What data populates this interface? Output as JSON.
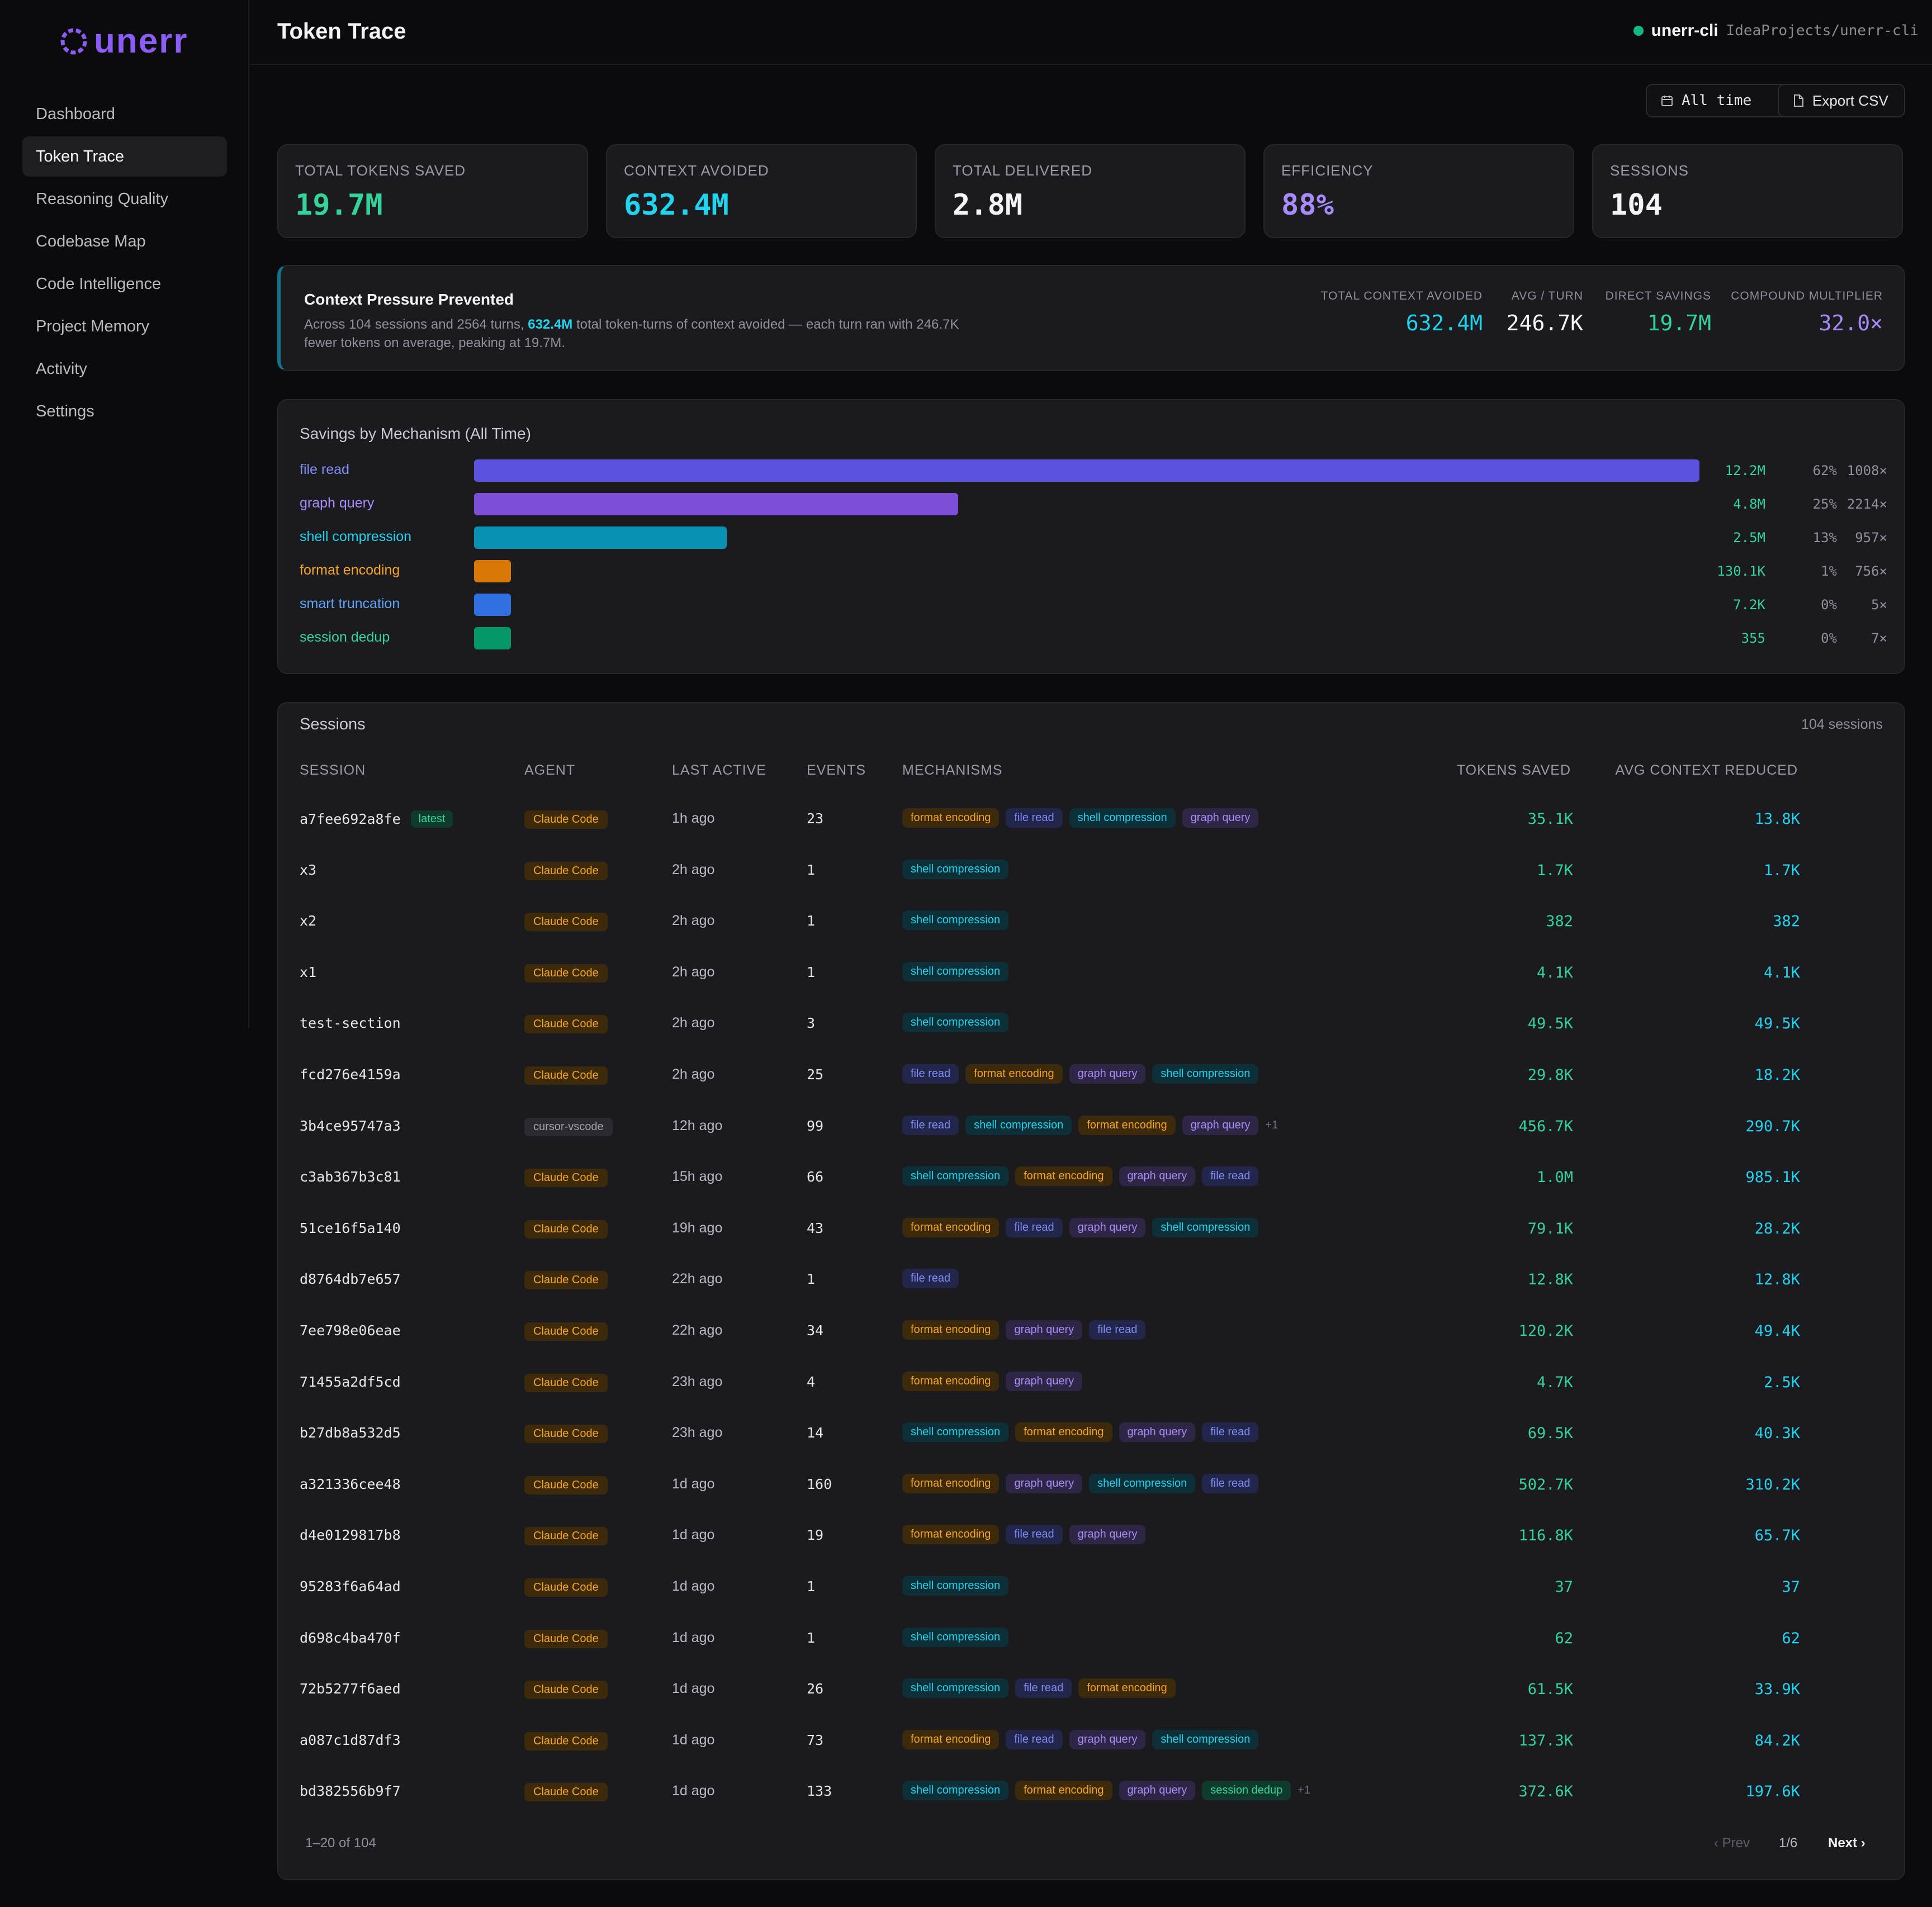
{
  "brand": {
    "name": "unerr",
    "color": "#8b5cf6"
  },
  "sidebar": {
    "items": [
      {
        "label": "Dashboard",
        "active": false
      },
      {
        "label": "Token Trace",
        "active": true
      },
      {
        "label": "Reasoning Quality",
        "active": false
      },
      {
        "label": "Codebase Map",
        "active": false
      },
      {
        "label": "Code Intelligence",
        "active": false
      },
      {
        "label": "Project Memory",
        "active": false
      },
      {
        "label": "Activity",
        "active": false
      },
      {
        "label": "Settings",
        "active": false
      }
    ]
  },
  "header": {
    "title": "Token Trace",
    "project_name": "unerr-cli",
    "project_path": "IdeaProjects/unerr-cli",
    "status_color": "#10b981"
  },
  "toolbar": {
    "range_label": "All time",
    "export_label": "Export CSV"
  },
  "stats": [
    {
      "label": "TOTAL TOKENS SAVED",
      "value": "19.7M",
      "color": "#34d399"
    },
    {
      "label": "CONTEXT AVOIDED",
      "value": "632.4M",
      "color": "#22d3ee"
    },
    {
      "label": "TOTAL DELIVERED",
      "value": "2.8M",
      "color": "#f4f4f5"
    },
    {
      "label": "EFFICIENCY",
      "value": "88%",
      "color": "#a78bfa"
    },
    {
      "label": "SESSIONS",
      "value": "104",
      "color": "#f4f4f5"
    }
  ],
  "pressure": {
    "title": "Context Pressure Prevented",
    "desc_before": "Across 104 sessions and 2564 turns, ",
    "desc_highlight": "632.4M",
    "desc_after": " total token-turns of context avoided — each turn ran with 246.7K fewer tokens on average, peaking at 19.7M.",
    "stats": [
      {
        "label": "TOTAL CONTEXT AVOIDED",
        "value": "632.4M",
        "color": "#22d3ee"
      },
      {
        "label": "AVG / TURN",
        "value": "246.7K",
        "color": "#f4f4f5"
      },
      {
        "label": "DIRECT SAVINGS",
        "value": "19.7M",
        "color": "#34d399"
      },
      {
        "label": "COMPOUND MULTIPLIER",
        "value": "32.0×",
        "color": "#a78bfa"
      }
    ]
  },
  "mechanism": {
    "title": "Savings by Mechanism (All Time)",
    "rows": [
      {
        "name": "file read",
        "tokens": "12.2M",
        "pct": "62%",
        "mult": "1008×",
        "share": 1.0,
        "color": "#5b52e0",
        "label_color": "#818cf8"
      },
      {
        "name": "graph query",
        "tokens": "4.8M",
        "pct": "25%",
        "mult": "2214×",
        "share": 0.395,
        "color": "#7e4fd6",
        "label_color": "#a78bfa"
      },
      {
        "name": "shell compression",
        "tokens": "2.5M",
        "pct": "13%",
        "mult": "957×",
        "share": 0.206,
        "color": "#0891b2",
        "label_color": "#22d3ee"
      },
      {
        "name": "format encoding",
        "tokens": "130.1K",
        "pct": "1%",
        "mult": "756×",
        "share": 0.03,
        "color": "#d97706",
        "label_color": "#f5a524"
      },
      {
        "name": "smart truncation",
        "tokens": "7.2K",
        "pct": "0%",
        "mult": "5×",
        "share": 0.03,
        "color": "#2f6fe0",
        "label_color": "#60a5fa"
      },
      {
        "name": "session dedup",
        "tokens": "355",
        "pct": "0%",
        "mult": "7×",
        "share": 0.03,
        "color": "#059669",
        "label_color": "#34d399"
      }
    ]
  },
  "sessions": {
    "title": "Sessions",
    "count": "104 sessions",
    "latest_label": "latest",
    "columns": [
      "SESSION",
      "AGENT",
      "LAST ACTIVE",
      "EVENTS",
      "MECHANISMS",
      "TOKENS SAVED",
      "AVG CONTEXT REDUCED"
    ],
    "rows": [
      {
        "id": "a7fee692a8fe",
        "latest": true,
        "agent": "Claude Code",
        "last": "1h ago",
        "events": "23",
        "mechs": [
          "format encoding",
          "file read",
          "shell compression",
          "graph query"
        ],
        "more": "",
        "saved": "35.1K",
        "avg": "13.8K"
      },
      {
        "id": "x3",
        "agent": "Claude Code",
        "last": "2h ago",
        "events": "1",
        "mechs": [
          "shell compression"
        ],
        "more": "",
        "saved": "1.7K",
        "avg": "1.7K"
      },
      {
        "id": "x2",
        "agent": "Claude Code",
        "last": "2h ago",
        "events": "1",
        "mechs": [
          "shell compression"
        ],
        "more": "",
        "saved": "382",
        "avg": "382"
      },
      {
        "id": "x1",
        "agent": "Claude Code",
        "last": "2h ago",
        "events": "1",
        "mechs": [
          "shell compression"
        ],
        "more": "",
        "saved": "4.1K",
        "avg": "4.1K"
      },
      {
        "id": "test-section",
        "agent": "Claude Code",
        "last": "2h ago",
        "events": "3",
        "mechs": [
          "shell compression"
        ],
        "more": "",
        "saved": "49.5K",
        "avg": "49.5K"
      },
      {
        "id": "fcd276e4159a",
        "agent": "Claude Code",
        "last": "2h ago",
        "events": "25",
        "mechs": [
          "file read",
          "format encoding",
          "graph query",
          "shell compression"
        ],
        "more": "",
        "saved": "29.8K",
        "avg": "18.2K"
      },
      {
        "id": "3b4ce95747a3",
        "agent": "cursor-vscode",
        "last": "12h ago",
        "events": "99",
        "mechs": [
          "file read",
          "shell compression",
          "format encoding",
          "graph query"
        ],
        "more": "+1",
        "saved": "456.7K",
        "avg": "290.7K"
      },
      {
        "id": "c3ab367b3c81",
        "agent": "Claude Code",
        "last": "15h ago",
        "events": "66",
        "mechs": [
          "shell compression",
          "format encoding",
          "graph query",
          "file read"
        ],
        "more": "",
        "saved": "1.0M",
        "avg": "985.1K"
      },
      {
        "id": "51ce16f5a140",
        "agent": "Claude Code",
        "last": "19h ago",
        "events": "43",
        "mechs": [
          "format encoding",
          "file read",
          "graph query",
          "shell compression"
        ],
        "more": "",
        "saved": "79.1K",
        "avg": "28.2K"
      },
      {
        "id": "d8764db7e657",
        "agent": "Claude Code",
        "last": "22h ago",
        "events": "1",
        "mechs": [
          "file read"
        ],
        "more": "",
        "saved": "12.8K",
        "avg": "12.8K"
      },
      {
        "id": "7ee798e06eae",
        "agent": "Claude Code",
        "last": "22h ago",
        "events": "34",
        "mechs": [
          "format encoding",
          "graph query",
          "file read"
        ],
        "more": "",
        "saved": "120.2K",
        "avg": "49.4K"
      },
      {
        "id": "71455a2df5cd",
        "agent": "Claude Code",
        "last": "23h ago",
        "events": "4",
        "mechs": [
          "format encoding",
          "graph query"
        ],
        "more": "",
        "saved": "4.7K",
        "avg": "2.5K"
      },
      {
        "id": "b27db8a532d5",
        "agent": "Claude Code",
        "last": "23h ago",
        "events": "14",
        "mechs": [
          "shell compression",
          "format encoding",
          "graph query",
          "file read"
        ],
        "more": "",
        "saved": "69.5K",
        "avg": "40.3K"
      },
      {
        "id": "a321336cee48",
        "agent": "Claude Code",
        "last": "1d ago",
        "events": "160",
        "mechs": [
          "format encoding",
          "graph query",
          "shell compression",
          "file read"
        ],
        "more": "",
        "saved": "502.7K",
        "avg": "310.2K"
      },
      {
        "id": "d4e0129817b8",
        "agent": "Claude Code",
        "last": "1d ago",
        "events": "19",
        "mechs": [
          "format encoding",
          "file read",
          "graph query"
        ],
        "more": "",
        "saved": "116.8K",
        "avg": "65.7K"
      },
      {
        "id": "95283f6a64ad",
        "agent": "Claude Code",
        "last": "1d ago",
        "events": "1",
        "mechs": [
          "shell compression"
        ],
        "more": "",
        "saved": "37",
        "avg": "37"
      },
      {
        "id": "d698c4ba470f",
        "agent": "Claude Code",
        "last": "1d ago",
        "events": "1",
        "mechs": [
          "shell compression"
        ],
        "more": "",
        "saved": "62",
        "avg": "62"
      },
      {
        "id": "72b5277f6aed",
        "agent": "Claude Code",
        "last": "1d ago",
        "events": "26",
        "mechs": [
          "shell compression",
          "file read",
          "format encoding"
        ],
        "more": "",
        "saved": "61.5K",
        "avg": "33.9K"
      },
      {
        "id": "a087c1d87df3",
        "agent": "Claude Code",
        "last": "1d ago",
        "events": "73",
        "mechs": [
          "format encoding",
          "file read",
          "graph query",
          "shell compression"
        ],
        "more": "",
        "saved": "137.3K",
        "avg": "84.2K"
      },
      {
        "id": "bd382556b9f7",
        "agent": "Claude Code",
        "last": "1d ago",
        "events": "133",
        "mechs": [
          "shell compression",
          "format encoding",
          "graph query",
          "session dedup"
        ],
        "more": "+1",
        "saved": "372.6K",
        "avg": "197.6K"
      }
    ],
    "pager": {
      "info": "1–20 of 104",
      "prev": "‹ Prev",
      "page": "1/6",
      "next": "Next ›"
    }
  }
}
